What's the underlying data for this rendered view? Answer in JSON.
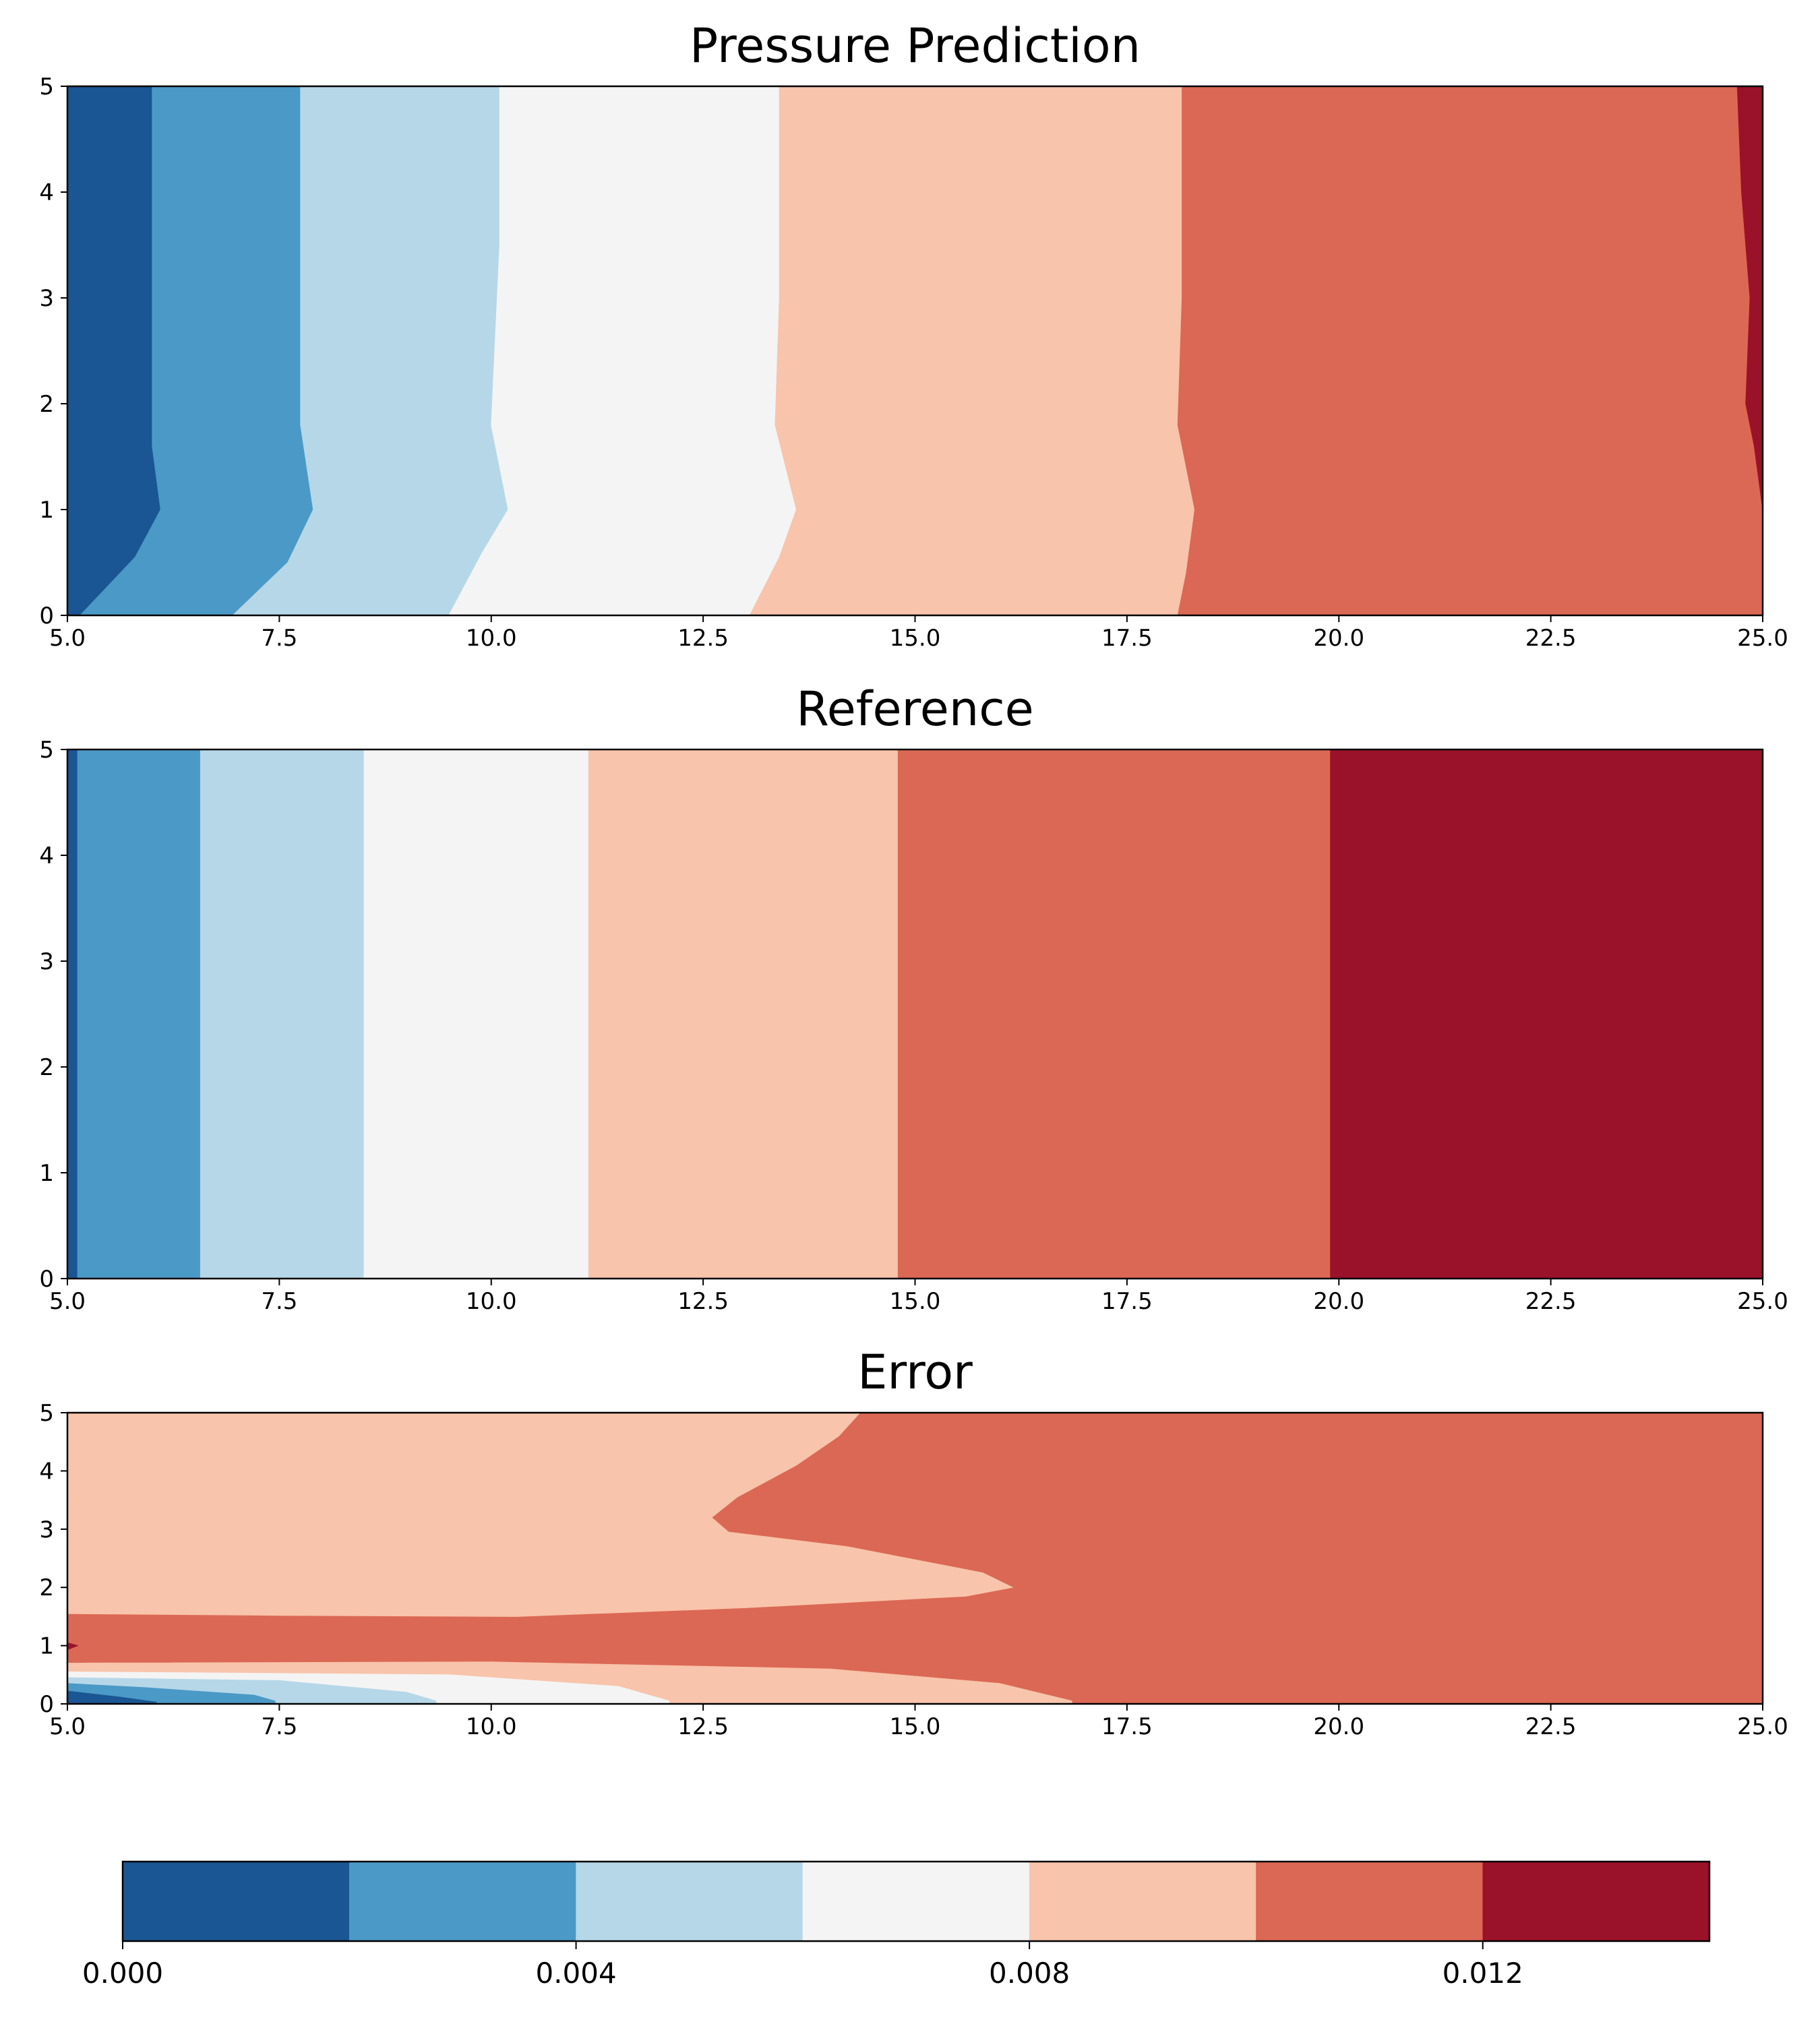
{
  "colors": {
    "levels": [
      "#1a5693",
      "#4b99c6",
      "#b6d7e8",
      "#f4f4f4",
      "#f8c4ab",
      "#db6854",
      "#9a1229"
    ]
  },
  "chart_data": [
    {
      "type": "heatmap",
      "title": "Pressure Prediction",
      "xlabel": "",
      "ylabel": "",
      "xlim": [
        5.0,
        25.0
      ],
      "ylim": [
        0,
        5
      ],
      "x_ticks": [
        "5.0",
        "7.5",
        "10.0",
        "12.5",
        "15.0",
        "17.5",
        "20.0",
        "22.5",
        "25.0"
      ],
      "y_ticks": [
        "0",
        "1",
        "2",
        "3",
        "4",
        "5"
      ],
      "regions": [
        {
          "level": 0,
          "points": [
            [
              5.0,
              0
            ],
            [
              5.15,
              0
            ],
            [
              5.8,
              0.55
            ],
            [
              6.1,
              1.0
            ],
            [
              6.0,
              1.6
            ],
            [
              6.0,
              5.0
            ],
            [
              5.0,
              5.0
            ]
          ]
        },
        {
          "level": 1,
          "points": [
            [
              5.15,
              0
            ],
            [
              6.95,
              0
            ],
            [
              7.6,
              0.5
            ],
            [
              7.9,
              1.0
            ],
            [
              7.75,
              1.8
            ],
            [
              7.75,
              5.0
            ],
            [
              6.0,
              5.0
            ],
            [
              6.0,
              1.6
            ],
            [
              6.1,
              1.0
            ],
            [
              5.8,
              0.55
            ]
          ]
        },
        {
          "level": 2,
          "points": [
            [
              6.95,
              0
            ],
            [
              9.5,
              0
            ],
            [
              9.9,
              0.6
            ],
            [
              10.2,
              1.0
            ],
            [
              10.0,
              1.8
            ],
            [
              10.1,
              3.5
            ],
            [
              10.1,
              5.0
            ],
            [
              7.75,
              5.0
            ],
            [
              7.75,
              1.8
            ],
            [
              7.9,
              1.0
            ],
            [
              7.6,
              0.5
            ]
          ]
        },
        {
          "level": 3,
          "points": [
            [
              9.5,
              0
            ],
            [
              13.05,
              0
            ],
            [
              13.4,
              0.55
            ],
            [
              13.6,
              1.0
            ],
            [
              13.35,
              1.8
            ],
            [
              13.4,
              3.0
            ],
            [
              13.4,
              5.0
            ],
            [
              10.1,
              5.0
            ],
            [
              10.1,
              3.5
            ],
            [
              10.0,
              1.8
            ],
            [
              10.2,
              1.0
            ],
            [
              9.9,
              0.6
            ]
          ]
        },
        {
          "level": 4,
          "points": [
            [
              13.05,
              0
            ],
            [
              18.1,
              0
            ],
            [
              18.2,
              0.4
            ],
            [
              18.3,
              1.0
            ],
            [
              18.1,
              1.8
            ],
            [
              18.15,
              3.0
            ],
            [
              18.15,
              5.0
            ],
            [
              13.4,
              5.0
            ],
            [
              13.4,
              3.0
            ],
            [
              13.35,
              1.8
            ],
            [
              13.6,
              1.0
            ],
            [
              13.4,
              0.55
            ]
          ]
        },
        {
          "level": 5,
          "points": [
            [
              18.1,
              0
            ],
            [
              25.0,
              0
            ],
            [
              25.0,
              1.0
            ],
            [
              24.9,
              1.6
            ],
            [
              24.8,
              2.0
            ],
            [
              24.85,
              3.0
            ],
            [
              24.75,
              4.0
            ],
            [
              24.7,
              5.0
            ],
            [
              18.15,
              5.0
            ],
            [
              18.15,
              3.0
            ],
            [
              18.1,
              1.8
            ],
            [
              18.3,
              1.0
            ],
            [
              18.2,
              0.4
            ]
          ]
        },
        {
          "level": 6,
          "points": [
            [
              25.0,
              1.0
            ],
            [
              25.0,
              5.0
            ],
            [
              24.7,
              5.0
            ],
            [
              24.75,
              4.0
            ],
            [
              24.85,
              3.0
            ],
            [
              24.8,
              2.0
            ],
            [
              24.9,
              1.6
            ]
          ]
        }
      ]
    },
    {
      "type": "heatmap",
      "title": "Reference",
      "xlabel": "",
      "ylabel": "",
      "xlim": [
        5.0,
        25.0
      ],
      "ylim": [
        0,
        5
      ],
      "x_ticks": [
        "5.0",
        "7.5",
        "10.0",
        "12.5",
        "15.0",
        "17.5",
        "20.0",
        "22.5",
        "25.0"
      ],
      "y_ticks": [
        "0",
        "1",
        "2",
        "3",
        "4",
        "5"
      ],
      "regions": [
        {
          "level": 0,
          "points": [
            [
              5.0,
              0
            ],
            [
              5.12,
              0
            ],
            [
              5.12,
              5
            ],
            [
              5.0,
              5
            ]
          ]
        },
        {
          "level": 1,
          "points": [
            [
              5.12,
              0
            ],
            [
              6.57,
              0
            ],
            [
              6.57,
              5
            ],
            [
              5.12,
              5
            ]
          ]
        },
        {
          "level": 2,
          "points": [
            [
              6.57,
              0
            ],
            [
              8.5,
              0
            ],
            [
              8.5,
              5
            ],
            [
              6.57,
              5
            ]
          ]
        },
        {
          "level": 3,
          "points": [
            [
              8.5,
              0
            ],
            [
              11.15,
              0
            ],
            [
              11.15,
              5
            ],
            [
              8.5,
              5
            ]
          ]
        },
        {
          "level": 4,
          "points": [
            [
              11.15,
              0
            ],
            [
              14.8,
              0
            ],
            [
              14.8,
              5
            ],
            [
              11.15,
              5
            ]
          ]
        },
        {
          "level": 5,
          "points": [
            [
              14.8,
              0
            ],
            [
              19.9,
              0
            ],
            [
              19.9,
              5
            ],
            [
              14.8,
              5
            ]
          ]
        },
        {
          "level": 6,
          "points": [
            [
              19.9,
              0
            ],
            [
              25.0,
              0
            ],
            [
              25.0,
              5
            ],
            [
              19.9,
              5
            ]
          ]
        }
      ]
    },
    {
      "type": "heatmap",
      "title": "Error",
      "xlabel": "",
      "ylabel": "",
      "xlim": [
        5.0,
        25.0
      ],
      "ylim": [
        0,
        5
      ],
      "x_ticks": [
        "5.0",
        "7.5",
        "10.0",
        "12.5",
        "15.0",
        "17.5",
        "20.0",
        "22.5",
        "25.0"
      ],
      "y_ticks": [
        "0",
        "1",
        "2",
        "3",
        "4",
        "5"
      ],
      "regions": [
        {
          "level": 5,
          "points": [
            [
              5,
              0
            ],
            [
              25,
              0
            ],
            [
              25,
              5
            ],
            [
              5,
              5
            ]
          ]
        },
        {
          "level": 4,
          "points": [
            [
              5,
              5
            ],
            [
              14.35,
              5
            ],
            [
              14.1,
              4.6
            ],
            [
              13.6,
              4.1
            ],
            [
              12.9,
              3.55
            ],
            [
              12.6,
              3.2
            ],
            [
              12.8,
              2.95
            ],
            [
              14.2,
              2.7
            ],
            [
              15.8,
              2.25
            ],
            [
              16.15,
              2.0
            ],
            [
              15.6,
              1.85
            ],
            [
              13.0,
              1.65
            ],
            [
              10.3,
              1.5
            ],
            [
              7.5,
              1.52
            ],
            [
              5,
              1.55
            ],
            [
              5,
              3.5
            ],
            [
              5.45,
              3.3
            ],
            [
              5.4,
              3.05
            ],
            [
              5,
              2.8
            ]
          ]
        },
        {
          "level": 4,
          "points": [
            [
              5,
              0.7
            ],
            [
              10.0,
              0.72
            ],
            [
              14.0,
              0.6
            ],
            [
              16.0,
              0.35
            ],
            [
              16.85,
              0.05
            ],
            [
              16.85,
              0
            ],
            [
              5,
              0
            ]
          ]
        },
        {
          "level": 3,
          "points": [
            [
              5,
              0.55
            ],
            [
              9.5,
              0.5
            ],
            [
              11.5,
              0.3
            ],
            [
              12.1,
              0.05
            ],
            [
              12.1,
              0
            ],
            [
              5,
              0
            ]
          ]
        },
        {
          "level": 2,
          "points": [
            [
              5,
              0.45
            ],
            [
              7.5,
              0.4
            ],
            [
              9.0,
              0.2
            ],
            [
              9.35,
              0.05
            ],
            [
              9.35,
              0
            ],
            [
              5,
              0
            ]
          ]
        },
        {
          "level": 1,
          "points": [
            [
              5,
              0.35
            ],
            [
              5.9,
              0.28
            ],
            [
              7.2,
              0.15
            ],
            [
              7.45,
              0.05
            ],
            [
              7.45,
              0
            ],
            [
              5,
              0
            ]
          ]
        },
        {
          "level": 0,
          "points": [
            [
              5,
              0.22
            ],
            [
              5.6,
              0.12
            ],
            [
              6.05,
              0.03
            ],
            [
              6.05,
              0
            ],
            [
              5,
              0
            ]
          ]
        },
        {
          "level": 6,
          "points": [
            [
              5,
              1.05
            ],
            [
              5.12,
              1.0
            ],
            [
              5,
              0.93
            ]
          ]
        }
      ]
    }
  ],
  "colorbar": {
    "bounds": [
      0.0,
      0.014
    ],
    "boundaries": [
      0.0,
      0.002,
      0.004,
      0.006,
      0.008,
      0.01,
      0.012,
      0.014
    ],
    "tick_values": [
      0.0,
      0.004,
      0.008,
      0.012
    ],
    "tick_labels": [
      "0.000",
      "0.004",
      "0.008",
      "0.012"
    ]
  }
}
